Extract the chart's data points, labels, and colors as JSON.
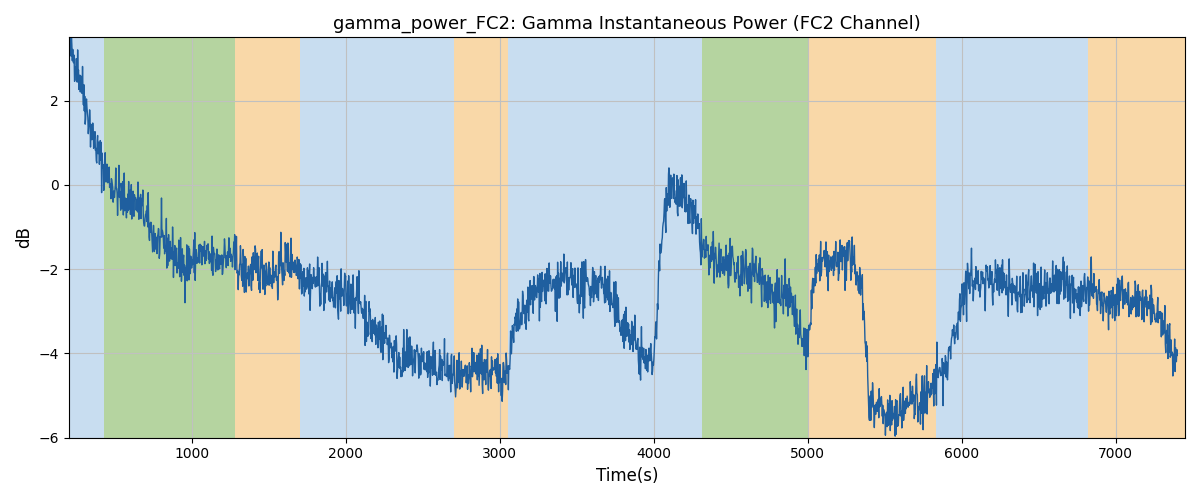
{
  "title": "gamma_power_FC2: Gamma Instantaneous Power (FC2 Channel)",
  "xlabel": "Time(s)",
  "ylabel": "dB",
  "xlim": [
    200,
    7450
  ],
  "ylim": [
    -6,
    3.5
  ],
  "yticks": [
    -6,
    -4,
    -2,
    0,
    2
  ],
  "xticks": [
    1000,
    2000,
    3000,
    4000,
    5000,
    6000,
    7000
  ],
  "line_color": "#1f5f9f",
  "line_width": 1.0,
  "grid_color": "#c0c0c0",
  "bands": [
    {
      "xmin": 200,
      "xmax": 430,
      "color": "#c8ddf0"
    },
    {
      "xmin": 430,
      "xmax": 1280,
      "color": "#b5d4a0"
    },
    {
      "xmin": 1280,
      "xmax": 1700,
      "color": "#f9d8a8"
    },
    {
      "xmin": 1700,
      "xmax": 2700,
      "color": "#c8ddf0"
    },
    {
      "xmin": 2700,
      "xmax": 3050,
      "color": "#f9d8a8"
    },
    {
      "xmin": 3050,
      "xmax": 4100,
      "color": "#c8ddf0"
    },
    {
      "xmin": 4100,
      "xmax": 4310,
      "color": "#c8ddf0"
    },
    {
      "xmin": 4310,
      "xmax": 4610,
      "color": "#b5d4a0"
    },
    {
      "xmin": 4610,
      "xmax": 5010,
      "color": "#b5d4a0"
    },
    {
      "xmin": 5010,
      "xmax": 5830,
      "color": "#f9d8a8"
    },
    {
      "xmin": 5830,
      "xmax": 6820,
      "color": "#c8ddf0"
    },
    {
      "xmin": 6820,
      "xmax": 7450,
      "color": "#f9d8a8"
    }
  ],
  "seed": 42,
  "n_points": 2500,
  "t_start": 200,
  "t_end": 7400,
  "figsize": [
    12.0,
    5.0
  ],
  "dpi": 100
}
